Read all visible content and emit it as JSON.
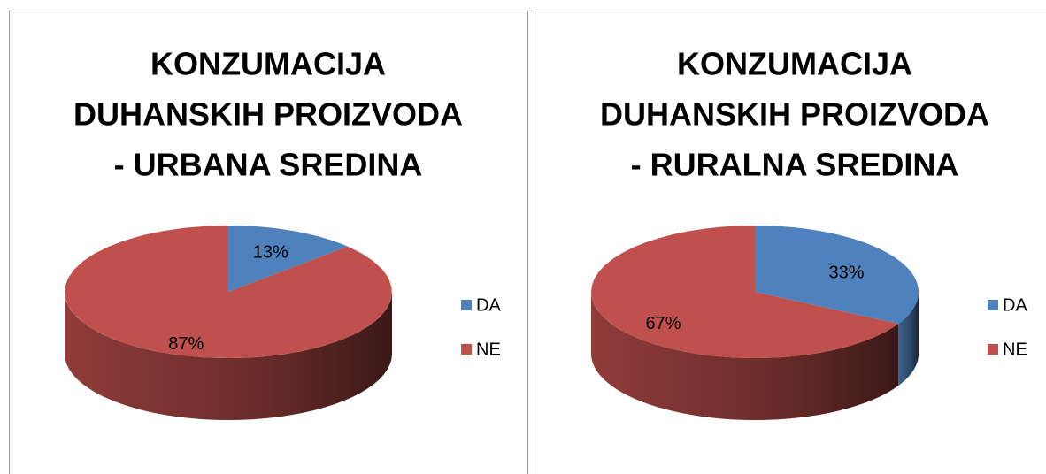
{
  "chart_data": [
    {
      "type": "pie",
      "title": [
        "KONZUMACIJA",
        "DUHANSKIH PROIZVODA",
        "- URBANA SREDINA"
      ],
      "categories": [
        "DA",
        "NE"
      ],
      "values": [
        13,
        87
      ],
      "value_labels": [
        "13%",
        "87%"
      ],
      "colors": [
        "#4f81bd",
        "#c0504d"
      ],
      "legend": "right"
    },
    {
      "type": "pie",
      "title": [
        "KONZUMACIJA",
        "DUHANSKIH PROIZVODA",
        "- RURALNA SREDINA"
      ],
      "categories": [
        "DA",
        "NE"
      ],
      "values": [
        33,
        67
      ],
      "value_labels": [
        "33%",
        "67%"
      ],
      "colors": [
        "#4f81bd",
        "#c0504d"
      ],
      "legend": "right"
    }
  ]
}
